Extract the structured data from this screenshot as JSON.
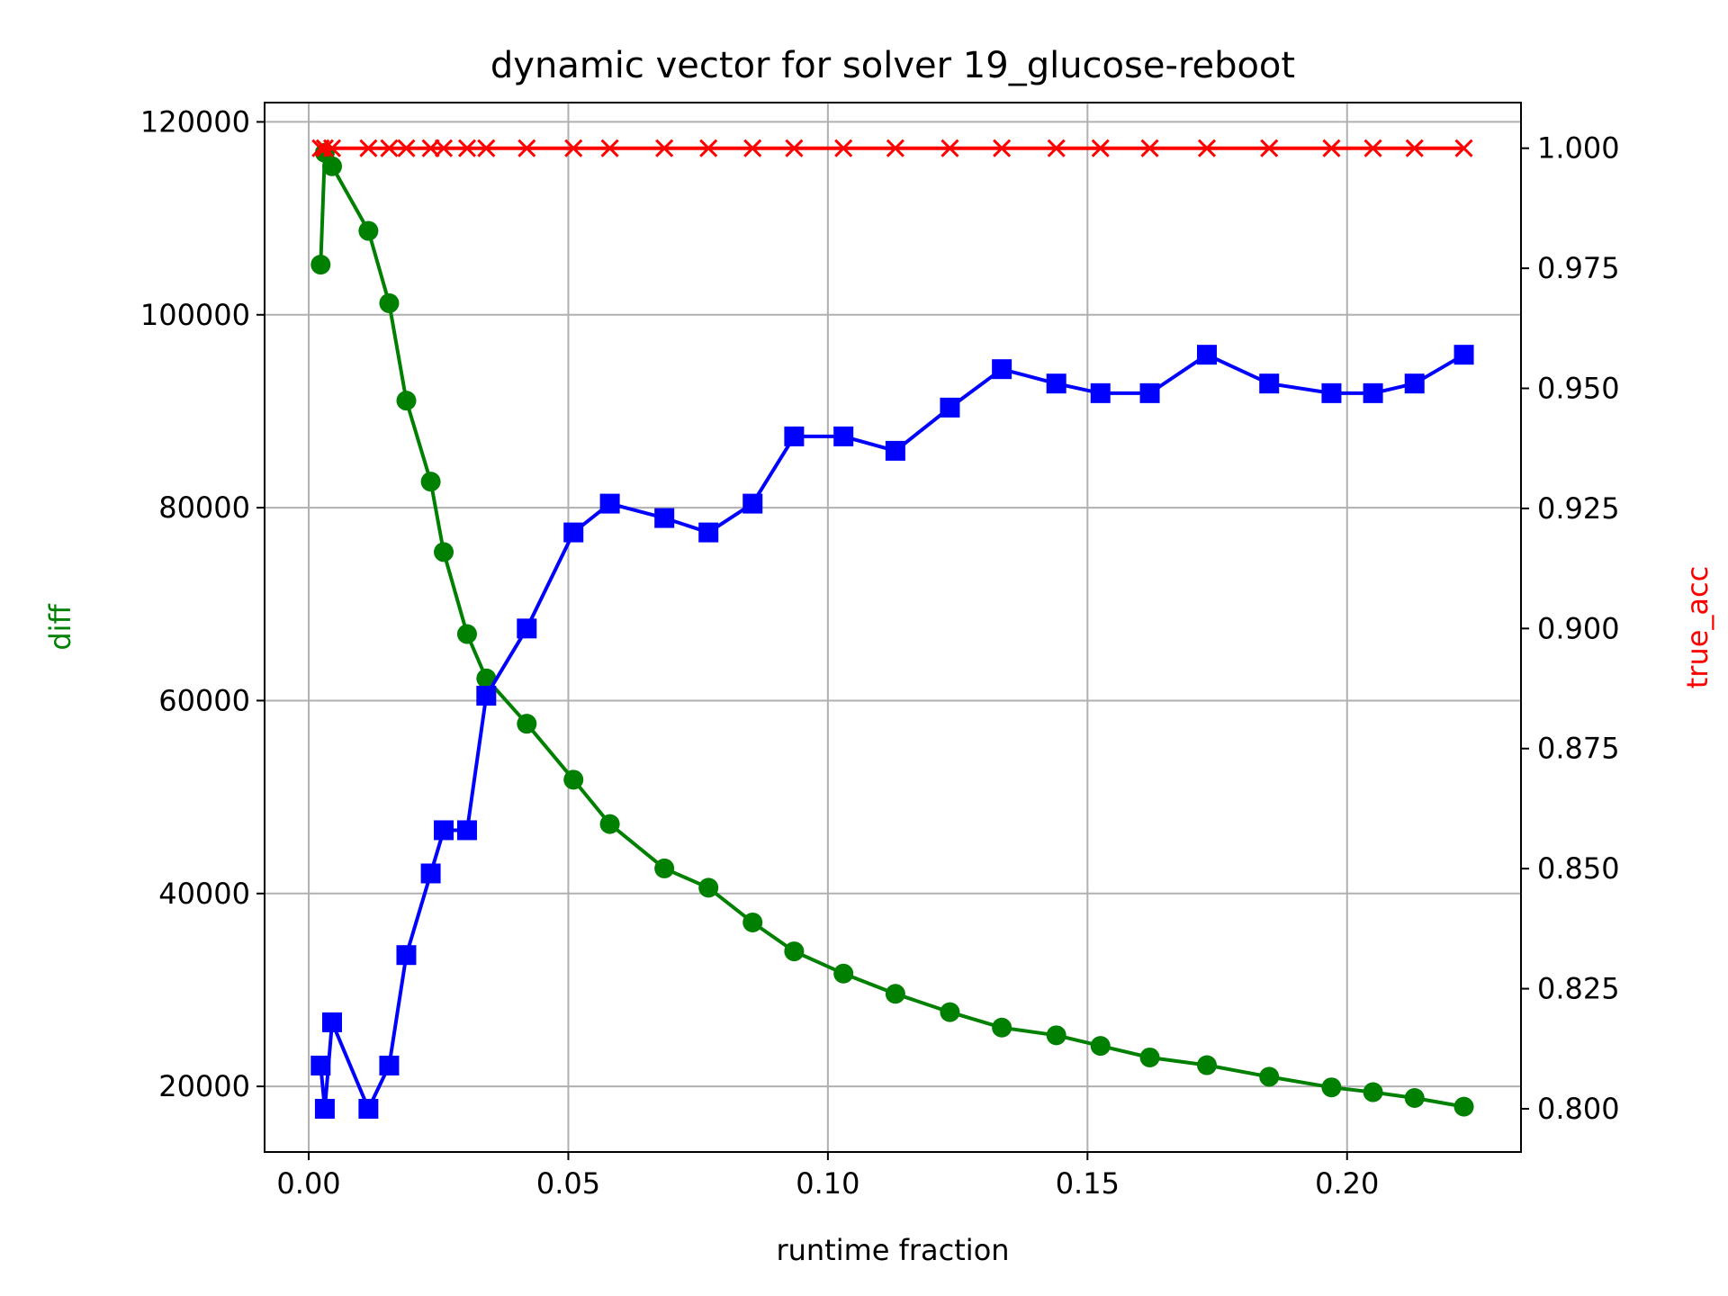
{
  "chart_data": {
    "type": "line",
    "title": "dynamic vector for solver 19_glucose-reboot",
    "xlabel": "runtime fraction",
    "ylabel": "diff",
    "y2label": "true_acc",
    "xlim": [
      -0.0085,
      0.2335
    ],
    "ylim": [
      13200,
      122000
    ],
    "y2lim": [
      0.791,
      1.0095
    ],
    "xticks": [
      "0.00",
      "0.05",
      "0.10",
      "0.15",
      "0.20"
    ],
    "yticks": [
      "20000",
      "40000",
      "60000",
      "80000",
      "100000",
      "120000"
    ],
    "y2ticks": [
      "0.800",
      "0.825",
      "0.850",
      "0.875",
      "0.900",
      "0.925",
      "0.950",
      "0.975",
      "1.000"
    ],
    "grid": true,
    "colors": {
      "diff": "#008000",
      "acc": "#0000ff",
      "true_acc": "#ff0000"
    },
    "series": [
      {
        "axis": "left",
        "color": "#008000",
        "marker": "circle",
        "x": [
          0.0023,
          0.0031,
          0.0045,
          0.0115,
          0.0155,
          0.0188,
          0.0235,
          0.026,
          0.0305,
          0.0342,
          0.042,
          0.051,
          0.058,
          0.0685,
          0.077,
          0.0855,
          0.0935,
          0.103,
          0.113,
          0.1235,
          0.1335,
          0.144,
          0.1525,
          0.162,
          0.173,
          0.185,
          0.197,
          0.205,
          0.213,
          0.2225
        ],
        "y": [
          105200,
          116800,
          115400,
          108700,
          101200,
          91100,
          82700,
          75400,
          66900,
          62300,
          57600,
          51800,
          47200,
          42600,
          40600,
          37000,
          34000,
          31700,
          29600,
          27700,
          26100,
          25300,
          24200,
          23000,
          22200,
          21000,
          19900,
          19400,
          18800,
          17900
        ]
      },
      {
        "axis": "right",
        "color": "#0000ff",
        "marker": "square",
        "x": [
          0.0023,
          0.0031,
          0.0045,
          0.0115,
          0.0155,
          0.0188,
          0.0235,
          0.026,
          0.0305,
          0.0342,
          0.042,
          0.051,
          0.058,
          0.0685,
          0.077,
          0.0855,
          0.0935,
          0.103,
          0.113,
          0.1235,
          0.1335,
          0.144,
          0.1525,
          0.162,
          0.173,
          0.185,
          0.197,
          0.205,
          0.213,
          0.2225
        ],
        "y": [
          0.809,
          0.8,
          0.818,
          0.8,
          0.809,
          0.832,
          0.849,
          0.858,
          0.858,
          0.886,
          0.9,
          0.92,
          0.926,
          0.923,
          0.92,
          0.926,
          0.94,
          0.94,
          0.937,
          0.946,
          0.954,
          0.951,
          0.949,
          0.949,
          0.957,
          0.951,
          0.949,
          0.949,
          0.951,
          0.957
        ]
      },
      {
        "axis": "right",
        "color": "#ff0000",
        "marker": "x",
        "x": [
          0.0023,
          0.0031,
          0.0045,
          0.0115,
          0.0155,
          0.0188,
          0.0235,
          0.026,
          0.0305,
          0.0342,
          0.042,
          0.051,
          0.058,
          0.0685,
          0.077,
          0.0855,
          0.0935,
          0.103,
          0.113,
          0.1235,
          0.1335,
          0.144,
          0.1525,
          0.162,
          0.173,
          0.185,
          0.197,
          0.205,
          0.213,
          0.2225
        ],
        "y": [
          1.0,
          1.0,
          1.0,
          1.0,
          1.0,
          1.0,
          1.0,
          1.0,
          1.0,
          1.0,
          1.0,
          1.0,
          1.0,
          1.0,
          1.0,
          1.0,
          1.0,
          1.0,
          1.0,
          1.0,
          1.0,
          1.0,
          1.0,
          1.0,
          1.0,
          1.0,
          1.0,
          1.0,
          1.0,
          1.0
        ]
      }
    ]
  }
}
